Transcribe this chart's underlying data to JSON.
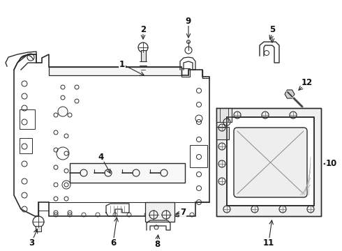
{
  "bg_color": "#ffffff",
  "line_color": "#2a2a2a",
  "figsize": [
    4.9,
    3.6
  ],
  "dpi": 100,
  "xlim": [
    0,
    490
  ],
  "ylim": [
    0,
    360
  ]
}
